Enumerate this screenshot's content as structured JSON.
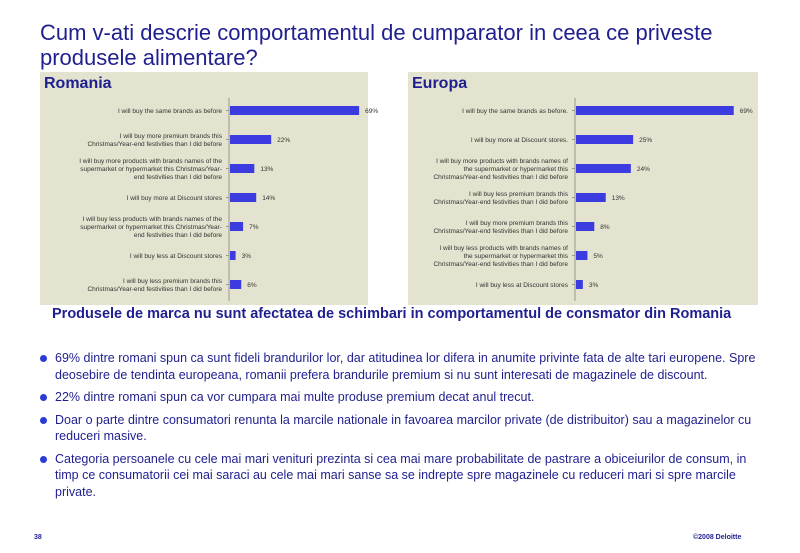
{
  "slide": {
    "title": "Cum v-ati descrie comportamentul de cumparator in ceea ce priveste produsele alimentare?",
    "subheading": "Produsele de marca nu sunt afectatea de schimbari in comportamentul de consmator din Romania",
    "bullets": [
      "69% dintre romani spun ca sunt fideli brandurilor lor, dar atitudinea lor difera in anumite privinte fata de alte tari europene. Spre deosebire de tendinta europeana, romanii prefera brandurile premium si nu sunt interesati de magazinele de discount.",
      "22% dintre romani spun ca vor cumpara mai multe produse premium decat anul trecut.",
      "Doar o parte dintre consumatori renunta la marcile nationale in favoarea marcilor private (de distribuitor) sau a magazinelor cu reduceri masive.",
      "Categoria persoanele cu cele mai mari venituri prezinta si cea mai mare probabilitate de pastrare a obiceiurilor de consum, in timp ce consumatorii cei mai saraci au cele mai mari sanse sa se indrepte spre magazinele cu reduceri mari si spre marcile private."
    ],
    "page_number": "38",
    "copyright": "©2008 Deloitte"
  },
  "colors": {
    "title": "#1f1f8f",
    "panel_bg": "#e3e3cf",
    "bar": "#3b3bdf",
    "label": "#333333"
  },
  "chart_data": [
    {
      "type": "bar",
      "orientation": "horizontal",
      "title": "Romania",
      "categories": [
        [
          "I will buy the same brands as before"
        ],
        [
          "I will buy more premium brands this",
          "Christmas/Year-end festivities than I did before"
        ],
        [
          "I will buy more products with brands names of the",
          "supermarket or hypermarket this Christmas/Year-",
          "end festivities than I did before"
        ],
        [
          "I will buy more at Discount stores"
        ],
        [
          "I will buy less products with brands names of the",
          "supermarket or hypermarket this Christmas/Year-",
          "end festivities than I did before"
        ],
        [
          "I will buy less at Discount stores"
        ],
        [
          "I will buy less premium brands this",
          "Christmas/Year-end festivities than I did before"
        ]
      ],
      "values": [
        69,
        22,
        13,
        14,
        7,
        3,
        6
      ],
      "value_labels": [
        "69%",
        "22%",
        "13%",
        "14%",
        "7%",
        "3%",
        "6%"
      ],
      "xlim": [
        0,
        70
      ]
    },
    {
      "type": "bar",
      "orientation": "horizontal",
      "title": "Europa",
      "categories": [
        [
          "I will buy the same brands as before."
        ],
        [
          "I will buy more at Discount stores."
        ],
        [
          "I will buy more products with brands names of",
          "the supermarket or hypermarket this",
          "Christmas/Year-end festivities than I did before"
        ],
        [
          "I will buy less premium brands this",
          "Christmas/Year-end festivities than I did before"
        ],
        [
          "I will buy more premium brands this",
          "Christmas/Year-end festivities than I did before"
        ],
        [
          "I will buy less products with brands names of",
          "the supermarket or hypermarket this",
          "Christmas/Year-end festivities than I did before"
        ],
        [
          "I will buy less at Discount stores"
        ]
      ],
      "values": [
        69,
        25,
        24,
        13,
        8,
        5,
        3
      ],
      "value_labels": [
        "69%",
        "25%",
        "24%",
        "13%",
        "8%",
        "5%",
        "3%"
      ],
      "xlim": [
        0,
        70
      ]
    }
  ]
}
